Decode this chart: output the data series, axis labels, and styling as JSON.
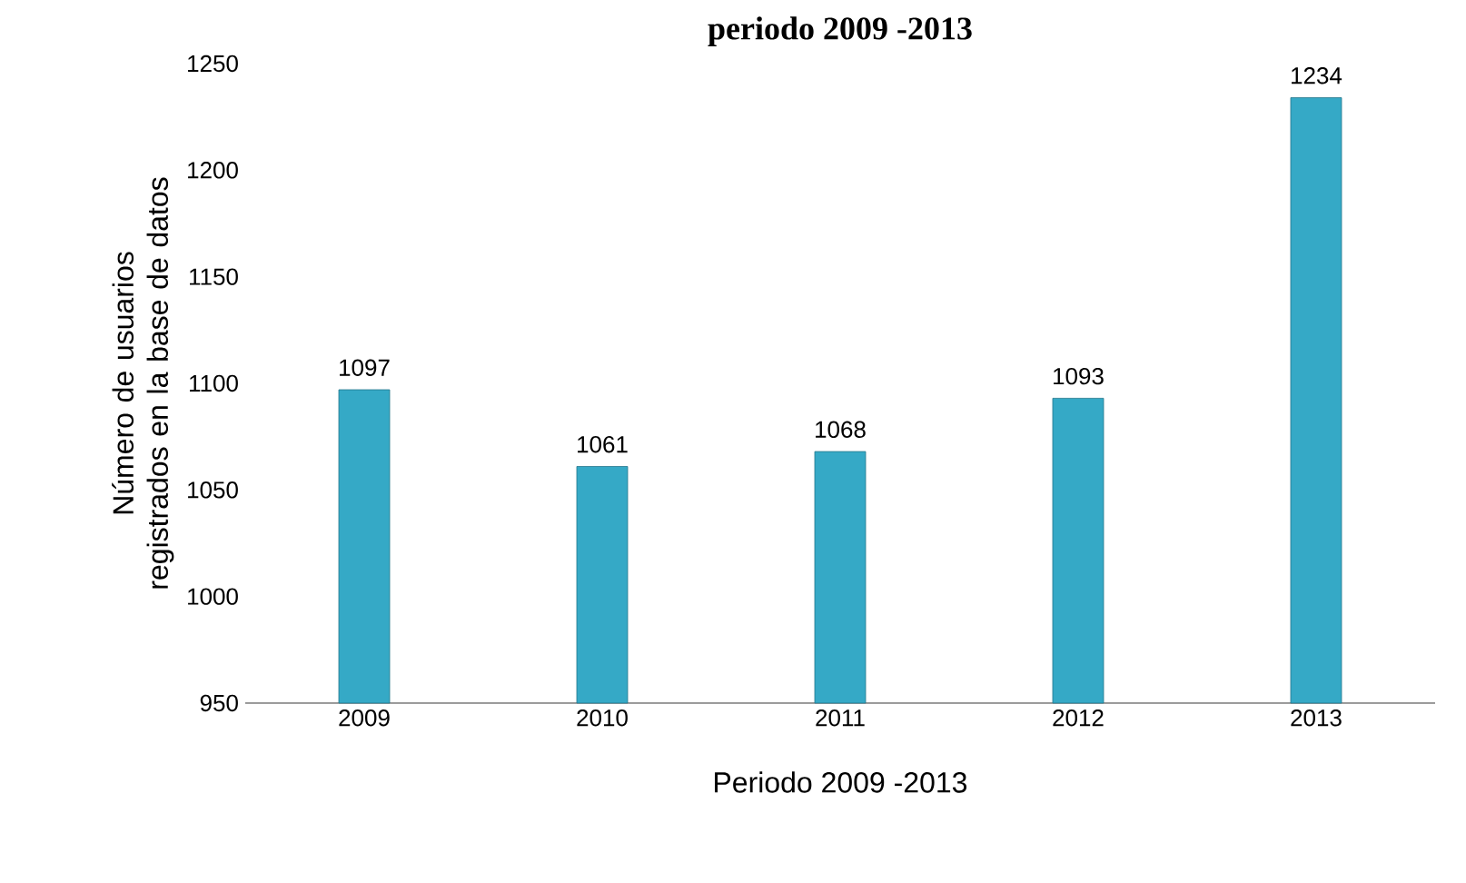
{
  "chart_data": {
    "type": "bar",
    "title": "periodo 2009 -2013",
    "xlabel": "Periodo 2009 -2013",
    "ylabel": "Número  de usuarios registrados en la base de datos",
    "categories": [
      "2009",
      "2010",
      "2011",
      "2012",
      "2013"
    ],
    "values": [
      1097,
      1061,
      1068,
      1093,
      1234
    ],
    "color": "#35a9c6",
    "ylim": [
      950,
      1250
    ],
    "yticks": [
      950,
      1000,
      1050,
      1100,
      1150,
      1200,
      1250
    ],
    "data_labels": true
  }
}
